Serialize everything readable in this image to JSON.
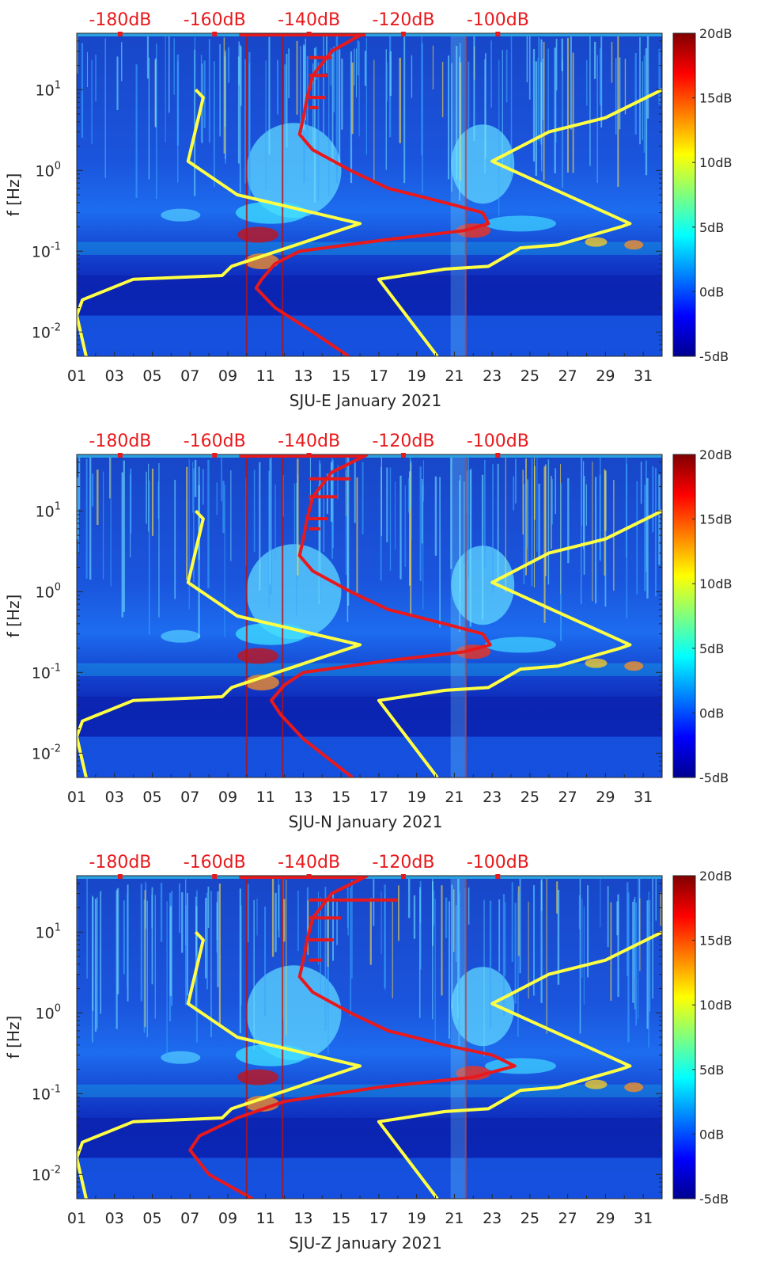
{
  "chart_data": [
    {
      "type": "heatmap",
      "station": "SJU-E",
      "xlabel": "SJU-E January 2021",
      "ylabel": "f [Hz]",
      "x_ticks": [
        "01",
        "03",
        "05",
        "07",
        "09",
        "11",
        "13",
        "15",
        "17",
        "19",
        "21",
        "23",
        "25",
        "27",
        "29",
        "31"
      ],
      "x_range": [
        1,
        32
      ],
      "y_ticks": [
        {
          "v": 0.01,
          "base": "10",
          "exp": "-2"
        },
        {
          "v": 0.1,
          "base": "10",
          "exp": "-1"
        },
        {
          "v": 1,
          "base": "10",
          "exp": "0"
        },
        {
          "v": 10,
          "base": "10",
          "exp": "1"
        }
      ],
      "y_range": [
        0.005,
        50
      ],
      "top_ticks": [
        {
          "label": "-180dB",
          "day": 3.3
        },
        {
          "label": "-160dB",
          "day": 8.3
        },
        {
          "label": "-140dB",
          "day": 13.3
        },
        {
          "label": "-120dB",
          "day": 18.3
        },
        {
          "label": "-100dB",
          "day": 23.3
        }
      ],
      "colorbar": {
        "labels": [
          "20dB",
          "15dB",
          "10dB",
          "5dB",
          "0dB",
          "-5dB"
        ],
        "range": [
          -5,
          20
        ]
      },
      "series": [
        {
          "name": "noise model low",
          "color": "#ffff44",
          "points": [
            [
              7.3,
              10
            ],
            [
              7.7,
              8
            ],
            [
              6.9,
              1.3
            ],
            [
              9.5,
              0.5
            ],
            [
              16.0,
              0.22
            ],
            [
              9.2,
              0.065
            ],
            [
              8.7,
              0.05
            ],
            [
              4.0,
              0.045
            ],
            [
              1.3,
              0.025
            ],
            [
              1.0,
              0.016
            ],
            [
              1.5,
              0.005
            ]
          ]
        },
        {
          "name": "noise model high",
          "color": "#ffff44",
          "points": [
            [
              32,
              10
            ],
            [
              29.0,
              4.5
            ],
            [
              26.0,
              3.0
            ],
            [
              23.0,
              1.3
            ],
            [
              30.3,
              0.22
            ],
            [
              29.8,
              0.2
            ],
            [
              26.5,
              0.12
            ],
            [
              24.5,
              0.11
            ],
            [
              22.8,
              0.065
            ],
            [
              20.5,
              0.06
            ],
            [
              17.0,
              0.045
            ],
            [
              20.1,
              0.005
            ]
          ]
        },
        {
          "name": "level curve",
          "color": "#e8191c",
          "points": [
            [
              16.2,
              50
            ],
            [
              14.5,
              30
            ],
            [
              13.5,
              15
            ],
            [
              13.2,
              8
            ],
            [
              13.0,
              4.5
            ],
            [
              12.8,
              2.8
            ],
            [
              13.5,
              1.8
            ],
            [
              15.5,
              1.0
            ],
            [
              17.5,
              0.6
            ],
            [
              20.5,
              0.4
            ],
            [
              22.5,
              0.3
            ],
            [
              22.8,
              0.22
            ],
            [
              21.5,
              0.18
            ],
            [
              17.5,
              0.14
            ],
            [
              12.8,
              0.1
            ],
            [
              11.5,
              0.07
            ],
            [
              10.8,
              0.045
            ],
            [
              10.5,
              0.035
            ],
            [
              11.5,
              0.02
            ],
            [
              13.5,
              0.01
            ],
            [
              15.4,
              0.005
            ]
          ],
          "spikes": [
            [
              14.5,
              25
            ],
            [
              14.3,
              15
            ],
            [
              14.2,
              8
            ],
            [
              13.8,
              6
            ]
          ]
        }
      ]
    },
    {
      "type": "heatmap",
      "station": "SJU-N",
      "xlabel": "SJU-N January 2021",
      "ylabel": "f [Hz]",
      "x_ticks": [
        "01",
        "03",
        "05",
        "07",
        "09",
        "11",
        "13",
        "15",
        "17",
        "19",
        "21",
        "23",
        "25",
        "27",
        "29",
        "31"
      ],
      "x_range": [
        1,
        32
      ],
      "y_ticks": [
        {
          "v": 0.01,
          "base": "10",
          "exp": "-2"
        },
        {
          "v": 0.1,
          "base": "10",
          "exp": "-1"
        },
        {
          "v": 1,
          "base": "10",
          "exp": "0"
        },
        {
          "v": 10,
          "base": "10",
          "exp": "1"
        }
      ],
      "y_range": [
        0.005,
        50
      ],
      "top_ticks": [
        {
          "label": "-180dB",
          "day": 3.3
        },
        {
          "label": "-160dB",
          "day": 8.3
        },
        {
          "label": "-140dB",
          "day": 13.3
        },
        {
          "label": "-120dB",
          "day": 18.3
        },
        {
          "label": "-100dB",
          "day": 23.3
        }
      ],
      "colorbar": {
        "labels": [
          "20dB",
          "15dB",
          "10dB",
          "5dB",
          "0dB",
          "-5dB"
        ],
        "range": [
          -5,
          20
        ]
      },
      "series": [
        {
          "name": "noise model low",
          "color": "#ffff44",
          "points": [
            [
              7.3,
              10
            ],
            [
              7.7,
              8
            ],
            [
              6.9,
              1.3
            ],
            [
              9.5,
              0.5
            ],
            [
              16.0,
              0.22
            ],
            [
              9.2,
              0.065
            ],
            [
              8.7,
              0.05
            ],
            [
              4.0,
              0.045
            ],
            [
              1.3,
              0.025
            ],
            [
              1.0,
              0.016
            ],
            [
              1.5,
              0.005
            ]
          ]
        },
        {
          "name": "noise model high",
          "color": "#ffff44",
          "points": [
            [
              32,
              10
            ],
            [
              29.0,
              4.5
            ],
            [
              26.0,
              3.0
            ],
            [
              23.0,
              1.3
            ],
            [
              30.3,
              0.22
            ],
            [
              29.8,
              0.2
            ],
            [
              26.5,
              0.12
            ],
            [
              24.5,
              0.11
            ],
            [
              22.8,
              0.065
            ],
            [
              20.5,
              0.06
            ],
            [
              17.0,
              0.045
            ],
            [
              20.1,
              0.005
            ]
          ]
        },
        {
          "name": "level curve",
          "color": "#e8191c",
          "points": [
            [
              16.4,
              50
            ],
            [
              14.5,
              30
            ],
            [
              13.5,
              15
            ],
            [
              13.2,
              8
            ],
            [
              13.0,
              4.5
            ],
            [
              12.8,
              2.8
            ],
            [
              13.5,
              1.8
            ],
            [
              15.5,
              1.0
            ],
            [
              17.5,
              0.6
            ],
            [
              20.5,
              0.4
            ],
            [
              22.5,
              0.3
            ],
            [
              22.9,
              0.22
            ],
            [
              21.5,
              0.18
            ],
            [
              17.5,
              0.14
            ],
            [
              13.0,
              0.1
            ],
            [
              12.0,
              0.07
            ],
            [
              11.3,
              0.045
            ],
            [
              11.8,
              0.03
            ],
            [
              13.0,
              0.015
            ],
            [
              15.6,
              0.005
            ]
          ],
          "spikes": [
            [
              15.5,
              25
            ],
            [
              14.8,
              15
            ],
            [
              14.3,
              8
            ],
            [
              13.9,
              6
            ]
          ]
        }
      ]
    },
    {
      "type": "heatmap",
      "station": "SJU-Z",
      "xlabel": "SJU-Z January 2021",
      "ylabel": "f [Hz]",
      "x_ticks": [
        "01",
        "03",
        "05",
        "07",
        "09",
        "11",
        "13",
        "15",
        "17",
        "19",
        "21",
        "23",
        "25",
        "27",
        "29",
        "31"
      ],
      "x_range": [
        1,
        32
      ],
      "y_ticks": [
        {
          "v": 0.01,
          "base": "10",
          "exp": "-2"
        },
        {
          "v": 0.1,
          "base": "10",
          "exp": "-1"
        },
        {
          "v": 1,
          "base": "10",
          "exp": "0"
        },
        {
          "v": 10,
          "base": "10",
          "exp": "1"
        }
      ],
      "y_range": [
        0.005,
        50
      ],
      "top_ticks": [
        {
          "label": "-180dB",
          "day": 3.3
        },
        {
          "label": "-160dB",
          "day": 8.3
        },
        {
          "label": "-140dB",
          "day": 13.3
        },
        {
          "label": "-120dB",
          "day": 18.3
        },
        {
          "label": "-100dB",
          "day": 23.3
        }
      ],
      "colorbar": {
        "labels": [
          "20dB",
          "15dB",
          "10dB",
          "5dB",
          "0dB",
          "-5dB"
        ],
        "range": [
          -5,
          20
        ]
      },
      "series": [
        {
          "name": "noise model low",
          "color": "#ffff44",
          "points": [
            [
              7.3,
              10
            ],
            [
              7.7,
              8
            ],
            [
              6.9,
              1.3
            ],
            [
              9.5,
              0.5
            ],
            [
              16.0,
              0.22
            ],
            [
              9.2,
              0.065
            ],
            [
              8.7,
              0.05
            ],
            [
              4.0,
              0.045
            ],
            [
              1.3,
              0.025
            ],
            [
              1.0,
              0.016
            ],
            [
              1.5,
              0.005
            ]
          ]
        },
        {
          "name": "noise model high",
          "color": "#ffff44",
          "points": [
            [
              32,
              10
            ],
            [
              29.0,
              4.5
            ],
            [
              26.0,
              3.0
            ],
            [
              23.0,
              1.3
            ],
            [
              30.3,
              0.22
            ],
            [
              29.8,
              0.2
            ],
            [
              26.5,
              0.12
            ],
            [
              24.5,
              0.11
            ],
            [
              22.8,
              0.065
            ],
            [
              20.5,
              0.06
            ],
            [
              17.0,
              0.045
            ],
            [
              20.1,
              0.005
            ]
          ]
        },
        {
          "name": "level curve",
          "color": "#e8191c",
          "points": [
            [
              16.4,
              50
            ],
            [
              14.5,
              30
            ],
            [
              13.5,
              15
            ],
            [
              13.2,
              8
            ],
            [
              13.0,
              4.5
            ],
            [
              12.8,
              2.8
            ],
            [
              13.5,
              1.8
            ],
            [
              15.5,
              1.0
            ],
            [
              17.5,
              0.6
            ],
            [
              20.5,
              0.4
            ],
            [
              23.0,
              0.3
            ],
            [
              24.2,
              0.22
            ],
            [
              22.0,
              0.16
            ],
            [
              17.0,
              0.12
            ],
            [
              12.0,
              0.08
            ],
            [
              9.5,
              0.05
            ],
            [
              7.5,
              0.03
            ],
            [
              7.0,
              0.02
            ],
            [
              8.0,
              0.01
            ],
            [
              10.3,
              0.005
            ]
          ],
          "spikes": [
            [
              18.0,
              25
            ],
            [
              15.0,
              15
            ],
            [
              14.6,
              8
            ],
            [
              14.0,
              4.5
            ]
          ]
        }
      ]
    }
  ]
}
